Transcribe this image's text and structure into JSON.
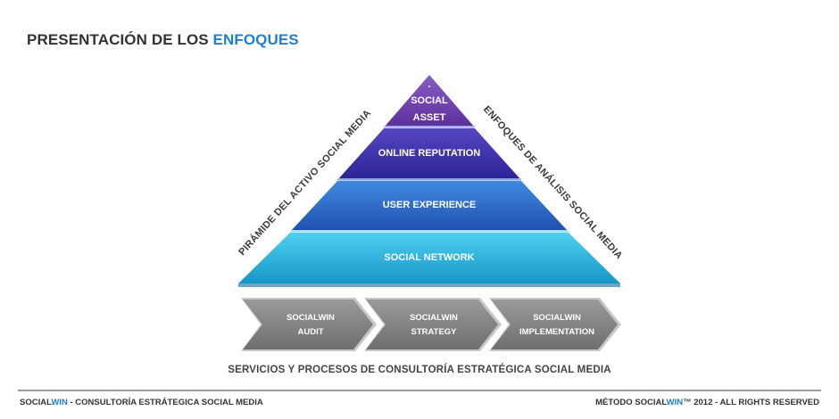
{
  "header": {
    "title_main": "PRESENTACIÓN DE LOS",
    "title_highlight": "ENFOQUES"
  },
  "pyramid": {
    "layers": [
      {
        "line1": "SOCIAL",
        "line2": "ASSET",
        "color": "#6a3fa8"
      },
      {
        "label": "ONLINE REPUTATION",
        "color": "#4b3aa8"
      },
      {
        "label": "USER EXPERIENCE",
        "color": "#2f6ed0"
      },
      {
        "label": "SOCIAL NETWORK",
        "color": "#2bb8e0"
      }
    ],
    "left_side_label": "PIRÁMIDE DEL ACTIVO SOCIAL MEDIA",
    "right_side_label": "ENFOQUES DE ANÁLISIS SOCIAL MEDIA"
  },
  "process": {
    "steps": [
      {
        "line1": "SOCIALWIN",
        "line2": "AUDIT"
      },
      {
        "line1": "SOCIALWIN",
        "line2": "STRATEGY"
      },
      {
        "line1": "SOCIALWIN",
        "line2": "IMPLEMENTATION"
      }
    ],
    "caption": "SERVICIOS  Y PROCESOS DE CONSULTORÍA ESTRATÉGICA SOCIAL MEDIA"
  },
  "footer": {
    "left_brand_a": "SOCIAL",
    "left_brand_b": "WIN",
    "left_rest": " - CONSULTORÍA ESTRÁTEGICA SOCIAL MEDIA",
    "right_a": "MÉTODO ",
    "right_brand_a": "SOCIAL",
    "right_brand_b": "WIN",
    "right_rest": "™ 2012 - ALL RIGHTS RESERVED"
  }
}
